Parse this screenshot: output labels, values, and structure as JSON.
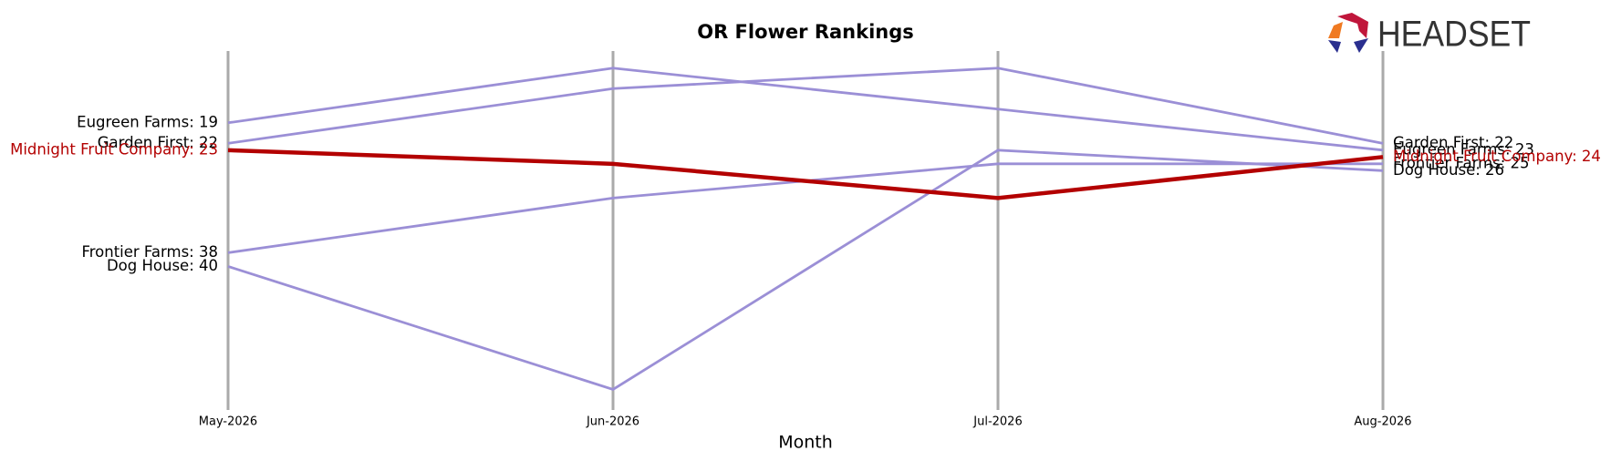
{
  "chart_data": {
    "type": "bump",
    "title": "OR Flower Rankings",
    "x_label": "Month",
    "brand": "HEADSET",
    "categories": [
      "May-2026",
      "Jun-2026",
      "Jul-2026",
      "Aug-2026"
    ],
    "ylim": [
      61,
      8.5
    ],
    "inverted": true,
    "series": [
      {
        "name": "Eugreen Farms",
        "color": "#9b8fd6",
        "values": [
          19,
          11,
          17,
          23
        ],
        "start_label": "Eugreen Farms: 19",
        "end_label": "Eugreen Farms: 23"
      },
      {
        "name": "Garden First",
        "color": "#9b8fd6",
        "values": [
          22,
          14,
          11,
          22
        ],
        "start_label": "Garden First: 22",
        "end_label": "Garden First: 22"
      },
      {
        "name": "Midnight Fruit Company",
        "color": "#b30000",
        "values": [
          23,
          25,
          30,
          24
        ],
        "start_label": "Midnight Fruit Company: 23",
        "end_label": "Midnight Fruit Company: 24"
      },
      {
        "name": "Frontier Farms",
        "color": "#9b8fd6",
        "values": [
          38,
          30,
          25,
          25
        ],
        "start_label": "Frontier Farms: 38",
        "end_label": "Frontier Farms: 25"
      },
      {
        "name": "Dog House",
        "color": "#9b8fd6",
        "values": [
          40,
          58,
          23,
          26
        ],
        "start_label": "Dog House: 40",
        "end_label": "Dog House: 26"
      }
    ]
  }
}
